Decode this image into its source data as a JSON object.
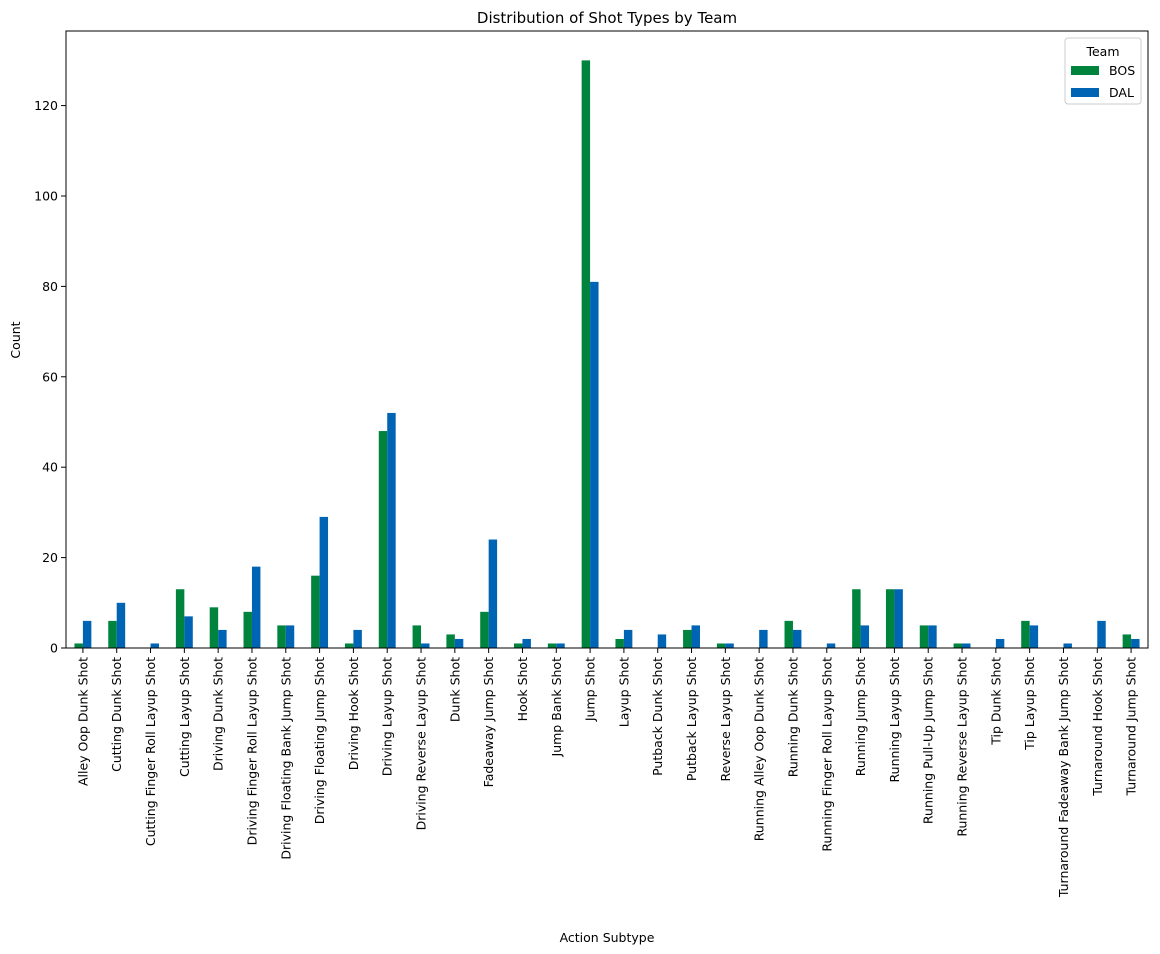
{
  "chart_data": {
    "type": "bar",
    "title": "Distribution of Shot Types by Team",
    "xlabel": "Action Subtype",
    "ylabel": "Count",
    "ylim": [
      0,
      136.5
    ],
    "yticks": [
      0,
      20,
      40,
      60,
      80,
      100,
      120
    ],
    "legend": {
      "title": "Team",
      "placement": "top-right"
    },
    "categories": [
      "Alley Oop Dunk Shot",
      "Cutting Dunk Shot",
      "Cutting Finger Roll Layup Shot",
      "Cutting Layup Shot",
      "Driving Dunk Shot",
      "Driving Finger Roll Layup Shot",
      "Driving Floating Bank Jump Shot",
      "Driving Floating Jump Shot",
      "Driving Hook Shot",
      "Driving Layup Shot",
      "Driving Reverse Layup Shot",
      "Dunk Shot",
      "Fadeaway Jump Shot",
      "Hook Shot",
      "Jump Bank Shot",
      "Jump Shot",
      "Layup Shot",
      "Putback Dunk Shot",
      "Putback Layup Shot",
      "Reverse Layup Shot",
      "Running Alley Oop Dunk Shot",
      "Running Dunk Shot",
      "Running Finger Roll Layup Shot",
      "Running Jump Shot",
      "Running Layup Shot",
      "Running Pull-Up Jump Shot",
      "Running Reverse Layup Shot",
      "Tip Dunk Shot",
      "Tip Layup Shot",
      "Turnaround Fadeaway Bank Jump Shot",
      "Turnaround Hook Shot",
      "Turnaround Jump Shot"
    ],
    "series": [
      {
        "name": "BOS",
        "color": "#00843d",
        "values": [
          1,
          6,
          0,
          13,
          9,
          8,
          5,
          16,
          1,
          48,
          5,
          3,
          8,
          1,
          1,
          130,
          2,
          0,
          4,
          1,
          0,
          6,
          0,
          13,
          13,
          5,
          1,
          0,
          6,
          0,
          0,
          3
        ]
      },
      {
        "name": "DAL",
        "color": "#0064b5",
        "values": [
          6,
          10,
          1,
          7,
          4,
          18,
          5,
          29,
          4,
          52,
          1,
          2,
          24,
          2,
          1,
          81,
          4,
          3,
          5,
          1,
          4,
          4,
          1,
          5,
          13,
          5,
          1,
          2,
          5,
          1,
          6,
          2
        ]
      }
    ]
  }
}
